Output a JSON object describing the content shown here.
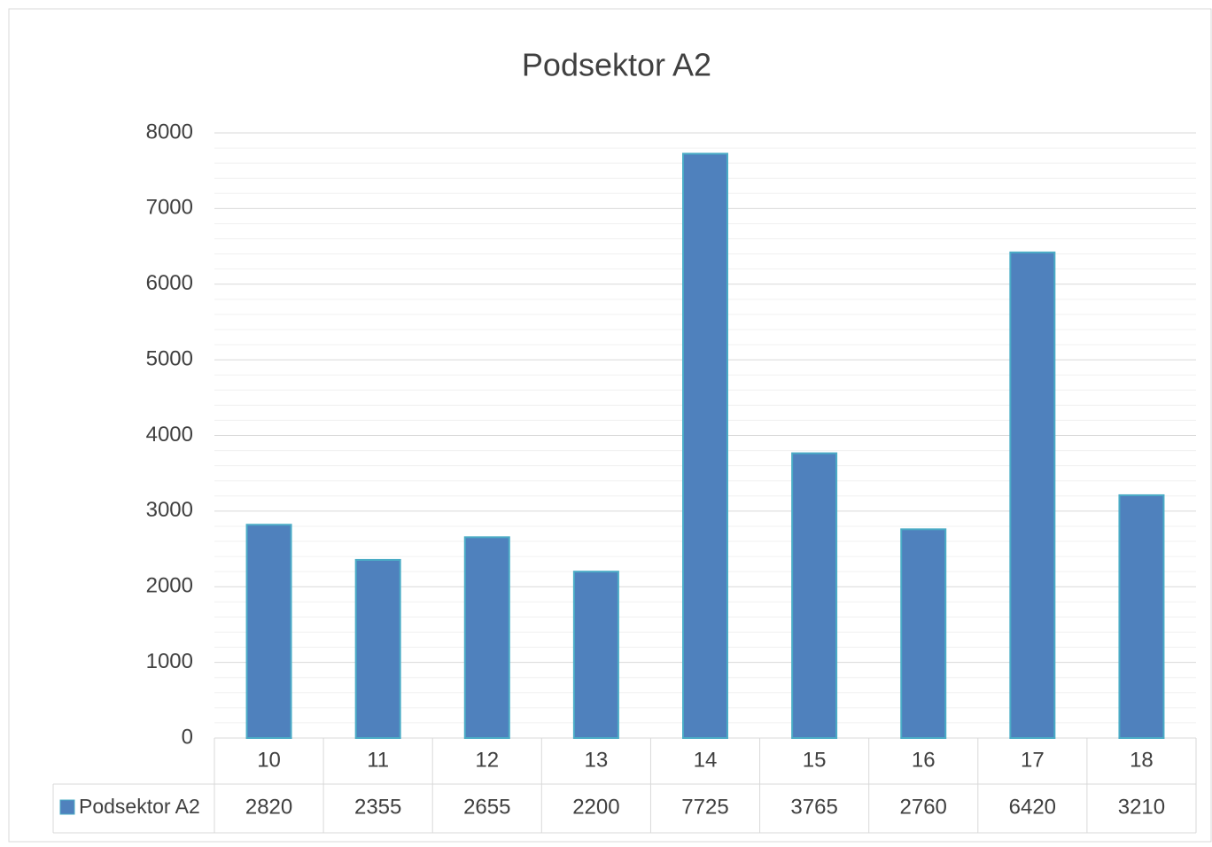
{
  "chart_data": {
    "type": "bar",
    "title": "Podsektor A2",
    "categories": [
      "10",
      "11",
      "12",
      "13",
      "14",
      "15",
      "16",
      "17",
      "18"
    ],
    "series": [
      {
        "name": "Podsektor A2",
        "color": "#4f81bd",
        "values": [
          2820,
          2355,
          2655,
          2200,
          7725,
          3765,
          2760,
          6420,
          3210
        ]
      }
    ],
    "ylim": [
      0,
      8000
    ],
    "yticks": [
      0,
      1000,
      2000,
      3000,
      4000,
      5000,
      6000,
      7000,
      8000
    ],
    "grid": true,
    "minor_grid": true,
    "data_table": true
  }
}
